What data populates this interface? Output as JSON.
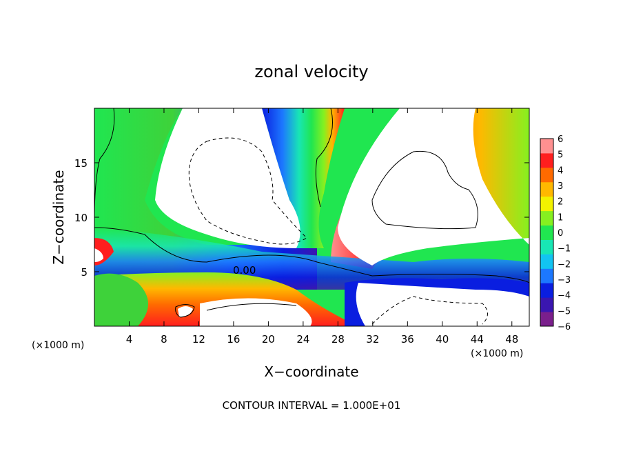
{
  "chart_data": {
    "type": "heatmap",
    "title": "zonal velocity",
    "xlabel": "X−coordinate",
    "ylabel": "Z−coordinate",
    "x_unit_left": "(×1000 m)",
    "x_unit_right": "(×1000 m)",
    "footer": "CONTOUR INTERVAL = 1.000E+01",
    "contour_label": "0.00",
    "xlim": [
      0,
      50
    ],
    "ylim": [
      0,
      20
    ],
    "xticks": [
      4,
      8,
      12,
      16,
      20,
      24,
      28,
      32,
      36,
      40,
      44,
      48
    ],
    "yticks": [
      5,
      10,
      15
    ],
    "colorbar": {
      "range": [
        -6,
        6
      ],
      "ticks": [
        "6",
        "5",
        "4",
        "3",
        "2",
        "1",
        "0",
        "−1",
        "−2",
        "−3",
        "−4",
        "−5",
        "−6"
      ],
      "colors": [
        "#7a1f8c",
        "#3a16b0",
        "#0a1ee0",
        "#1c78ff",
        "#12c4f2",
        "#18e6b4",
        "#20e650",
        "#86f020",
        "#f2f200",
        "#ffb800",
        "#ff6a00",
        "#ff1e1e",
        "#ff9090"
      ]
    },
    "white_regions_note": "",
    "grid": false
  },
  "colors": {
    "background": "#ffffff",
    "axis": "#000000"
  }
}
